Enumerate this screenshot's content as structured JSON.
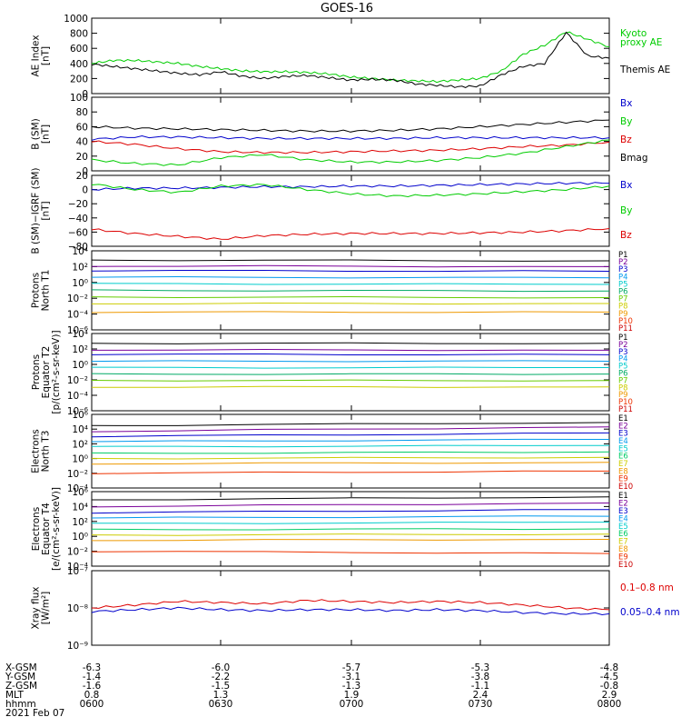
{
  "title": "GOES-16",
  "panels": [
    {
      "ylabel": [
        "AE Index",
        "[nT]"
      ],
      "ticks": [
        "1000",
        "800",
        "600",
        "400",
        "200",
        "0"
      ],
      "legend": [
        {
          "text": "Kyoto",
          "color": "#00cc00"
        },
        {
          "text": "proxy AE",
          "color": "#00cc00"
        },
        {
          "text": "Themis AE",
          "color": "#000000"
        }
      ]
    },
    {
      "ylabel": [
        "B (SM)",
        "[nT]"
      ],
      "ticks": [
        "100",
        "80",
        "60",
        "40",
        "20",
        "0"
      ],
      "legend": [
        {
          "text": "Bx",
          "color": "#0000cc"
        },
        {
          "text": "By",
          "color": "#00cc00"
        },
        {
          "text": "Bz",
          "color": "#dd0000"
        },
        {
          "text": "Bmag",
          "color": "#000000"
        }
      ]
    },
    {
      "ylabel": [
        "B (SM)−IGRF (SM)",
        "[nT]"
      ],
      "ticks": [
        "20",
        "0",
        "−20",
        "−40",
        "−60",
        "−80"
      ],
      "legend": [
        {
          "text": "Bx",
          "color": "#0000cc"
        },
        {
          "text": "By",
          "color": "#00cc00"
        },
        {
          "text": "Bz",
          "color": "#dd0000"
        }
      ]
    },
    {
      "ylabel": [
        "Protons",
        "North T1"
      ],
      "ticks": [
        "10⁴",
        "10²",
        "10⁰",
        "10⁻²",
        "10⁻⁴",
        "10⁻⁶"
      ],
      "legend": [
        {
          "text": "P1",
          "color": "#000000"
        },
        {
          "text": "P2",
          "color": "#7a0099"
        },
        {
          "text": "P3",
          "color": "#0000cc"
        },
        {
          "text": "P4",
          "color": "#0099ee"
        },
        {
          "text": "P5",
          "color": "#00cccc"
        },
        {
          "text": "P6",
          "color": "#00aa66"
        },
        {
          "text": "P7",
          "color": "#66cc00"
        },
        {
          "text": "P8",
          "color": "#cccc00"
        },
        {
          "text": "P9",
          "color": "#ee9900"
        },
        {
          "text": "P10",
          "color": "#ee3300"
        },
        {
          "text": "P11",
          "color": "#cc0000"
        }
      ]
    },
    {
      "ylabel": [
        "Protons",
        "Equator T2",
        "[p/(cm²-s-sr-keV)]"
      ],
      "ticks": [
        "10⁴",
        "10²",
        "10⁰",
        "10⁻²",
        "10⁻⁴",
        "10⁻⁶"
      ],
      "legend": [
        {
          "text": "P1",
          "color": "#000000"
        },
        {
          "text": "P2",
          "color": "#7a0099"
        },
        {
          "text": "P3",
          "color": "#0000cc"
        },
        {
          "text": "P4",
          "color": "#0099ee"
        },
        {
          "text": "P5",
          "color": "#00cccc"
        },
        {
          "text": "P6",
          "color": "#00aa66"
        },
        {
          "text": "P7",
          "color": "#66cc00"
        },
        {
          "text": "P8",
          "color": "#cccc00"
        },
        {
          "text": "P9",
          "color": "#ee9900"
        },
        {
          "text": "P10",
          "color": "#ee3300"
        },
        {
          "text": "P11",
          "color": "#cc0000"
        }
      ]
    },
    {
      "ylabel": [
        "Electrons",
        "North T3"
      ],
      "ticks": [
        "10⁶",
        "10⁴",
        "10²",
        "10⁰",
        "10⁻²",
        "10⁻⁴"
      ],
      "legend": [
        {
          "text": "E1",
          "color": "#000000"
        },
        {
          "text": "E2",
          "color": "#7a0099"
        },
        {
          "text": "E3",
          "color": "#0000cc"
        },
        {
          "text": "E4",
          "color": "#0099ee"
        },
        {
          "text": "E5",
          "color": "#00cccc"
        },
        {
          "text": "E6",
          "color": "#00cc66"
        },
        {
          "text": "E7",
          "color": "#cccc00"
        },
        {
          "text": "E8",
          "color": "#ee9900"
        },
        {
          "text": "E9",
          "color": "#ee3300"
        },
        {
          "text": "E10",
          "color": "#cc0000"
        }
      ]
    },
    {
      "ylabel": [
        "Electrons",
        "Equator T4",
        "[e/(cm²-s-sr-keV)]"
      ],
      "ticks": [
        "10⁶",
        "10⁴",
        "10²",
        "10⁰",
        "10⁻²",
        "10⁻⁴"
      ],
      "legend": [
        {
          "text": "E1",
          "color": "#000000"
        },
        {
          "text": "E2",
          "color": "#7a0099"
        },
        {
          "text": "E3",
          "color": "#0000cc"
        },
        {
          "text": "E4",
          "color": "#0099ee"
        },
        {
          "text": "E5",
          "color": "#00cccc"
        },
        {
          "text": "E6",
          "color": "#00cc66"
        },
        {
          "text": "E7",
          "color": "#cccc00"
        },
        {
          "text": "E8",
          "color": "#ee9900"
        },
        {
          "text": "E9",
          "color": "#ee3300"
        },
        {
          "text": "E10",
          "color": "#cc0000"
        }
      ]
    },
    {
      "ylabel": [
        "Xray flux",
        "[W/m²]"
      ],
      "ticks": [
        "10⁻⁷",
        "10⁻⁸",
        "10⁻⁹"
      ],
      "legend": [
        {
          "text": "0.1–0.8 nm",
          "color": "#dd0000"
        },
        {
          "text": "0.05–0.4 nm",
          "color": "#0000cc"
        }
      ]
    }
  ],
  "orbit": {
    "rows": [
      {
        "label": "X-GSM",
        "values": [
          "-6.3",
          "-6.0",
          "-5.7",
          "-5.3",
          "-4.8"
        ]
      },
      {
        "label": "Y-GSM",
        "values": [
          "-1.4",
          "-2.2",
          "-3.1",
          "-3.8",
          "-4.5"
        ]
      },
      {
        "label": "Z-GSM",
        "values": [
          "-1.6",
          "-1.5",
          "-1.3",
          "-1.1",
          "-0.8"
        ]
      },
      {
        "label": "MLT",
        "values": [
          "0.8",
          "1.3",
          "1.9",
          "2.4",
          "2.9"
        ]
      },
      {
        "label": "hhmm",
        "values": [
          "0600",
          "0630",
          "0700",
          "0730",
          "0800"
        ]
      }
    ],
    "date": "2021 Feb 07"
  },
  "chart_data": [
    {
      "type": "line",
      "panel": "AE Index",
      "x": [
        0,
        5,
        10,
        15,
        20,
        25,
        30,
        35,
        40,
        45,
        50,
        55,
        60,
        65,
        70,
        75,
        80,
        85,
        90,
        95,
        100,
        105,
        110,
        115,
        120
      ],
      "ylim": [
        0,
        1000
      ],
      "series": [
        {
          "name": "Kyoto proxy AE",
          "values": [
            400,
            440,
            440,
            420,
            400,
            360,
            330,
            300,
            290,
            290,
            280,
            260,
            220,
            200,
            180,
            170,
            160,
            180,
            200,
            300,
            520,
            640,
            820,
            720,
            620
          ]
        },
        {
          "name": "Themis AE",
          "values": [
            390,
            360,
            330,
            300,
            270,
            250,
            290,
            230,
            200,
            230,
            240,
            210,
            180,
            190,
            180,
            130,
            110,
            90,
            100,
            250,
            360,
            400,
            810,
            500,
            470
          ]
        }
      ]
    },
    {
      "type": "line",
      "panel": "B (SM)",
      "x": [
        0,
        10,
        20,
        30,
        40,
        50,
        60,
        70,
        80,
        90,
        100,
        110,
        120
      ],
      "ylim": [
        0,
        100
      ],
      "series": [
        {
          "name": "Bmag",
          "values": [
            60,
            58,
            57,
            56,
            55,
            54,
            54,
            55,
            57,
            60,
            63,
            66,
            69
          ]
        },
        {
          "name": "Bx",
          "values": [
            43,
            46,
            46,
            45,
            44,
            44,
            44,
            44,
            45,
            45,
            45,
            45,
            45
          ]
        },
        {
          "name": "Bz",
          "values": [
            40,
            36,
            30,
            26,
            25,
            25,
            26,
            27,
            28,
            30,
            33,
            35,
            39
          ]
        },
        {
          "name": "By",
          "values": [
            15,
            10,
            8,
            18,
            22,
            15,
            12,
            12,
            14,
            18,
            24,
            33,
            42
          ]
        }
      ]
    },
    {
      "type": "line",
      "panel": "B (SM)-IGRF (SM)",
      "x": [
        0,
        10,
        20,
        30,
        40,
        50,
        60,
        70,
        80,
        90,
        100,
        110,
        120
      ],
      "ylim": [
        -80,
        20
      ],
      "series": [
        {
          "name": "Bx",
          "values": [
            0,
            2,
            2,
            3,
            4,
            4,
            5,
            5,
            6,
            7,
            8,
            9,
            9
          ]
        },
        {
          "name": "By",
          "values": [
            8,
            0,
            -4,
            5,
            7,
            0,
            -6,
            -9,
            -8,
            -6,
            -3,
            0,
            5
          ]
        },
        {
          "name": "Bz",
          "values": [
            -56,
            -62,
            -66,
            -70,
            -65,
            -63,
            -62,
            -62,
            -62,
            -61,
            -60,
            -58,
            -55
          ]
        }
      ]
    },
    {
      "type": "line",
      "panel": "Protons North T1",
      "x": [
        0,
        120
      ],
      "yscale": "log",
      "series": [
        {
          "name": "P1",
          "values": [
            4000,
            3000
          ]
        },
        {
          "name": "P2",
          "values": [
            500,
            400
          ]
        },
        {
          "name": "P3",
          "values": [
            100,
            80
          ]
        },
        {
          "name": "P4",
          "values": [
            10,
            8
          ]
        },
        {
          "name": "P5",
          "values": [
            1,
            0.8
          ]
        },
        {
          "name": "P6",
          "values": [
            0.1,
            0.08
          ]
        },
        {
          "name": "P7",
          "values": [
            0.01,
            0.008
          ]
        },
        {
          "name": "P8",
          "values": [
            0.001,
            0.001
          ]
        },
        {
          "name": "P9",
          "values": [
            5e-05,
            5e-05
          ]
        }
      ]
    },
    {
      "type": "line",
      "panel": "Protons Equator T2",
      "x": [
        0,
        120
      ],
      "yscale": "log",
      "series": [
        {
          "name": "P1",
          "values": [
            3000,
            3000
          ]
        },
        {
          "name": "P2",
          "values": [
            300,
            250
          ]
        },
        {
          "name": "P3",
          "values": [
            60,
            50
          ]
        },
        {
          "name": "P4",
          "values": [
            5,
            5
          ]
        },
        {
          "name": "P5",
          "values": [
            0.5,
            0.5
          ]
        },
        {
          "name": "P6",
          "values": [
            0.05,
            0.05
          ]
        },
        {
          "name": "P7",
          "values": [
            0.005,
            0.005
          ]
        },
        {
          "name": "P8",
          "values": [
            0.0005,
            0.0005
          ]
        }
      ]
    },
    {
      "type": "line",
      "panel": "Electrons North T3",
      "x": [
        0,
        120
      ],
      "yscale": "log",
      "series": [
        {
          "name": "E1",
          "values": [
            30000,
            80000
          ]
        },
        {
          "name": "E2",
          "values": [
            5000,
            20000
          ]
        },
        {
          "name": "E3",
          "values": [
            1000,
            3000
          ]
        },
        {
          "name": "E4",
          "values": [
            200,
            400
          ]
        },
        {
          "name": "E5",
          "values": [
            40,
            60
          ]
        },
        {
          "name": "E6",
          "values": [
            5,
            8
          ]
        },
        {
          "name": "E7",
          "values": [
            1,
            1.5
          ]
        },
        {
          "name": "E8",
          "values": [
            0.2,
            0.3
          ]
        },
        {
          "name": "E9",
          "values": [
            0.01,
            0.02
          ]
        }
      ]
    },
    {
      "type": "line",
      "panel": "Electrons Equator T4",
      "x": [
        0,
        120
      ],
      "yscale": "log",
      "series": [
        {
          "name": "E1",
          "values": [
            80000,
            200000
          ]
        },
        {
          "name": "E2",
          "values": [
            10000,
            30000
          ]
        },
        {
          "name": "E3",
          "values": [
            1500,
            4000
          ]
        },
        {
          "name": "E4",
          "values": [
            300,
            500
          ]
        },
        {
          "name": "E5",
          "values": [
            50,
            80
          ]
        },
        {
          "name": "E6",
          "values": [
            8,
            10
          ]
        },
        {
          "name": "E7",
          "values": [
            1.5,
            2
          ]
        },
        {
          "name": "E8",
          "values": [
            0.3,
            0.4
          ]
        },
        {
          "name": "E9",
          "values": [
            0.01,
            0.005
          ]
        }
      ]
    },
    {
      "type": "line",
      "panel": "Xray flux",
      "x": [
        0,
        10,
        20,
        30,
        40,
        50,
        60,
        70,
        80,
        90,
        100,
        110,
        120
      ],
      "yscale": "log",
      "ylim": [
        1e-09,
        1e-07
      ],
      "series": [
        {
          "name": "0.1–0.8 nm",
          "values": [
            1e-08,
            1.2e-08,
            1.5e-08,
            1.4e-08,
            1.3e-08,
            1.6e-08,
            1.5e-08,
            1.4e-08,
            1.5e-08,
            1.4e-08,
            1.2e-08,
            1e-08,
            9e-09
          ]
        },
        {
          "name": "0.05–0.4 nm",
          "values": [
            8e-09,
            9e-09,
            1e-08,
            9e-09,
            8.5e-09,
            9e-09,
            9e-09,
            8.5e-09,
            9e-09,
            8.5e-09,
            7.5e-09,
            7e-09,
            7e-09
          ]
        }
      ]
    }
  ]
}
